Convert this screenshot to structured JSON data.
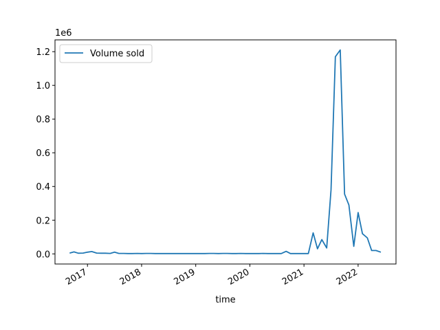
{
  "chart_data": {
    "type": "line",
    "title": "",
    "xlabel": "time",
    "ylabel": "",
    "y_offset_label": "1e6",
    "ylim": [
      -0.06,
      1.27
    ],
    "xlim": [
      2016.4,
      2022.7
    ],
    "grid": false,
    "legend_position": "top-left",
    "x_ticks": [
      {
        "value": 2017.0,
        "label": "2017"
      },
      {
        "value": 2018.0,
        "label": "2018"
      },
      {
        "value": 2019.0,
        "label": "2019"
      },
      {
        "value": 2020.0,
        "label": "2020"
      },
      {
        "value": 2021.0,
        "label": "2021"
      },
      {
        "value": 2022.0,
        "label": "2022"
      }
    ],
    "y_ticks": [
      {
        "value": 0.0,
        "label": "0.0"
      },
      {
        "value": 0.2,
        "label": "0.2"
      },
      {
        "value": 0.4,
        "label": "0.4"
      },
      {
        "value": 0.6,
        "label": "0.6"
      },
      {
        "value": 0.8,
        "label": "0.8"
      },
      {
        "value": 1.0,
        "label": "1.0"
      },
      {
        "value": 1.2,
        "label": "1.2"
      }
    ],
    "series": [
      {
        "name": "Volume sold",
        "color": "#1f77b4",
        "x": [
          2016.67,
          2016.75,
          2016.83,
          2016.92,
          2017.0,
          2017.08,
          2017.17,
          2017.25,
          2017.33,
          2017.42,
          2017.5,
          2017.58,
          2017.67,
          2017.75,
          2017.83,
          2017.92,
          2018.0,
          2018.08,
          2018.17,
          2018.25,
          2018.33,
          2018.42,
          2018.5,
          2018.58,
          2018.67,
          2018.75,
          2018.83,
          2018.92,
          2019.0,
          2019.08,
          2019.17,
          2019.25,
          2019.33,
          2019.42,
          2019.5,
          2019.58,
          2019.67,
          2019.75,
          2019.83,
          2019.92,
          2020.0,
          2020.08,
          2020.17,
          2020.25,
          2020.33,
          2020.42,
          2020.5,
          2020.58,
          2020.67,
          2020.75,
          2020.83,
          2020.92,
          2021.0,
          2021.08,
          2021.17,
          2021.25,
          2021.33,
          2021.42,
          2021.5,
          2021.58,
          2021.67,
          2021.75,
          2021.83,
          2021.92,
          2022.0,
          2022.08,
          2022.17,
          2022.25,
          2022.33,
          2022.42
        ],
        "values": [
          0.005,
          0.012,
          0.004,
          0.005,
          0.01,
          0.014,
          0.005,
          0.004,
          0.004,
          0.003,
          0.01,
          0.003,
          0.003,
          0.002,
          0.002,
          0.003,
          0.002,
          0.003,
          0.003,
          0.002,
          0.002,
          0.002,
          0.002,
          0.002,
          0.002,
          0.002,
          0.002,
          0.002,
          0.002,
          0.002,
          0.002,
          0.003,
          0.003,
          0.002,
          0.003,
          0.003,
          0.002,
          0.002,
          0.003,
          0.002,
          0.002,
          0.002,
          0.002,
          0.003,
          0.002,
          0.002,
          0.002,
          0.002,
          0.015,
          0.002,
          0.002,
          0.002,
          0.002,
          0.002,
          0.125,
          0.03,
          0.085,
          0.035,
          0.38,
          1.17,
          1.21,
          0.355,
          0.29,
          0.045,
          0.245,
          0.12,
          0.095,
          0.02,
          0.02,
          0.01
        ]
      }
    ]
  }
}
